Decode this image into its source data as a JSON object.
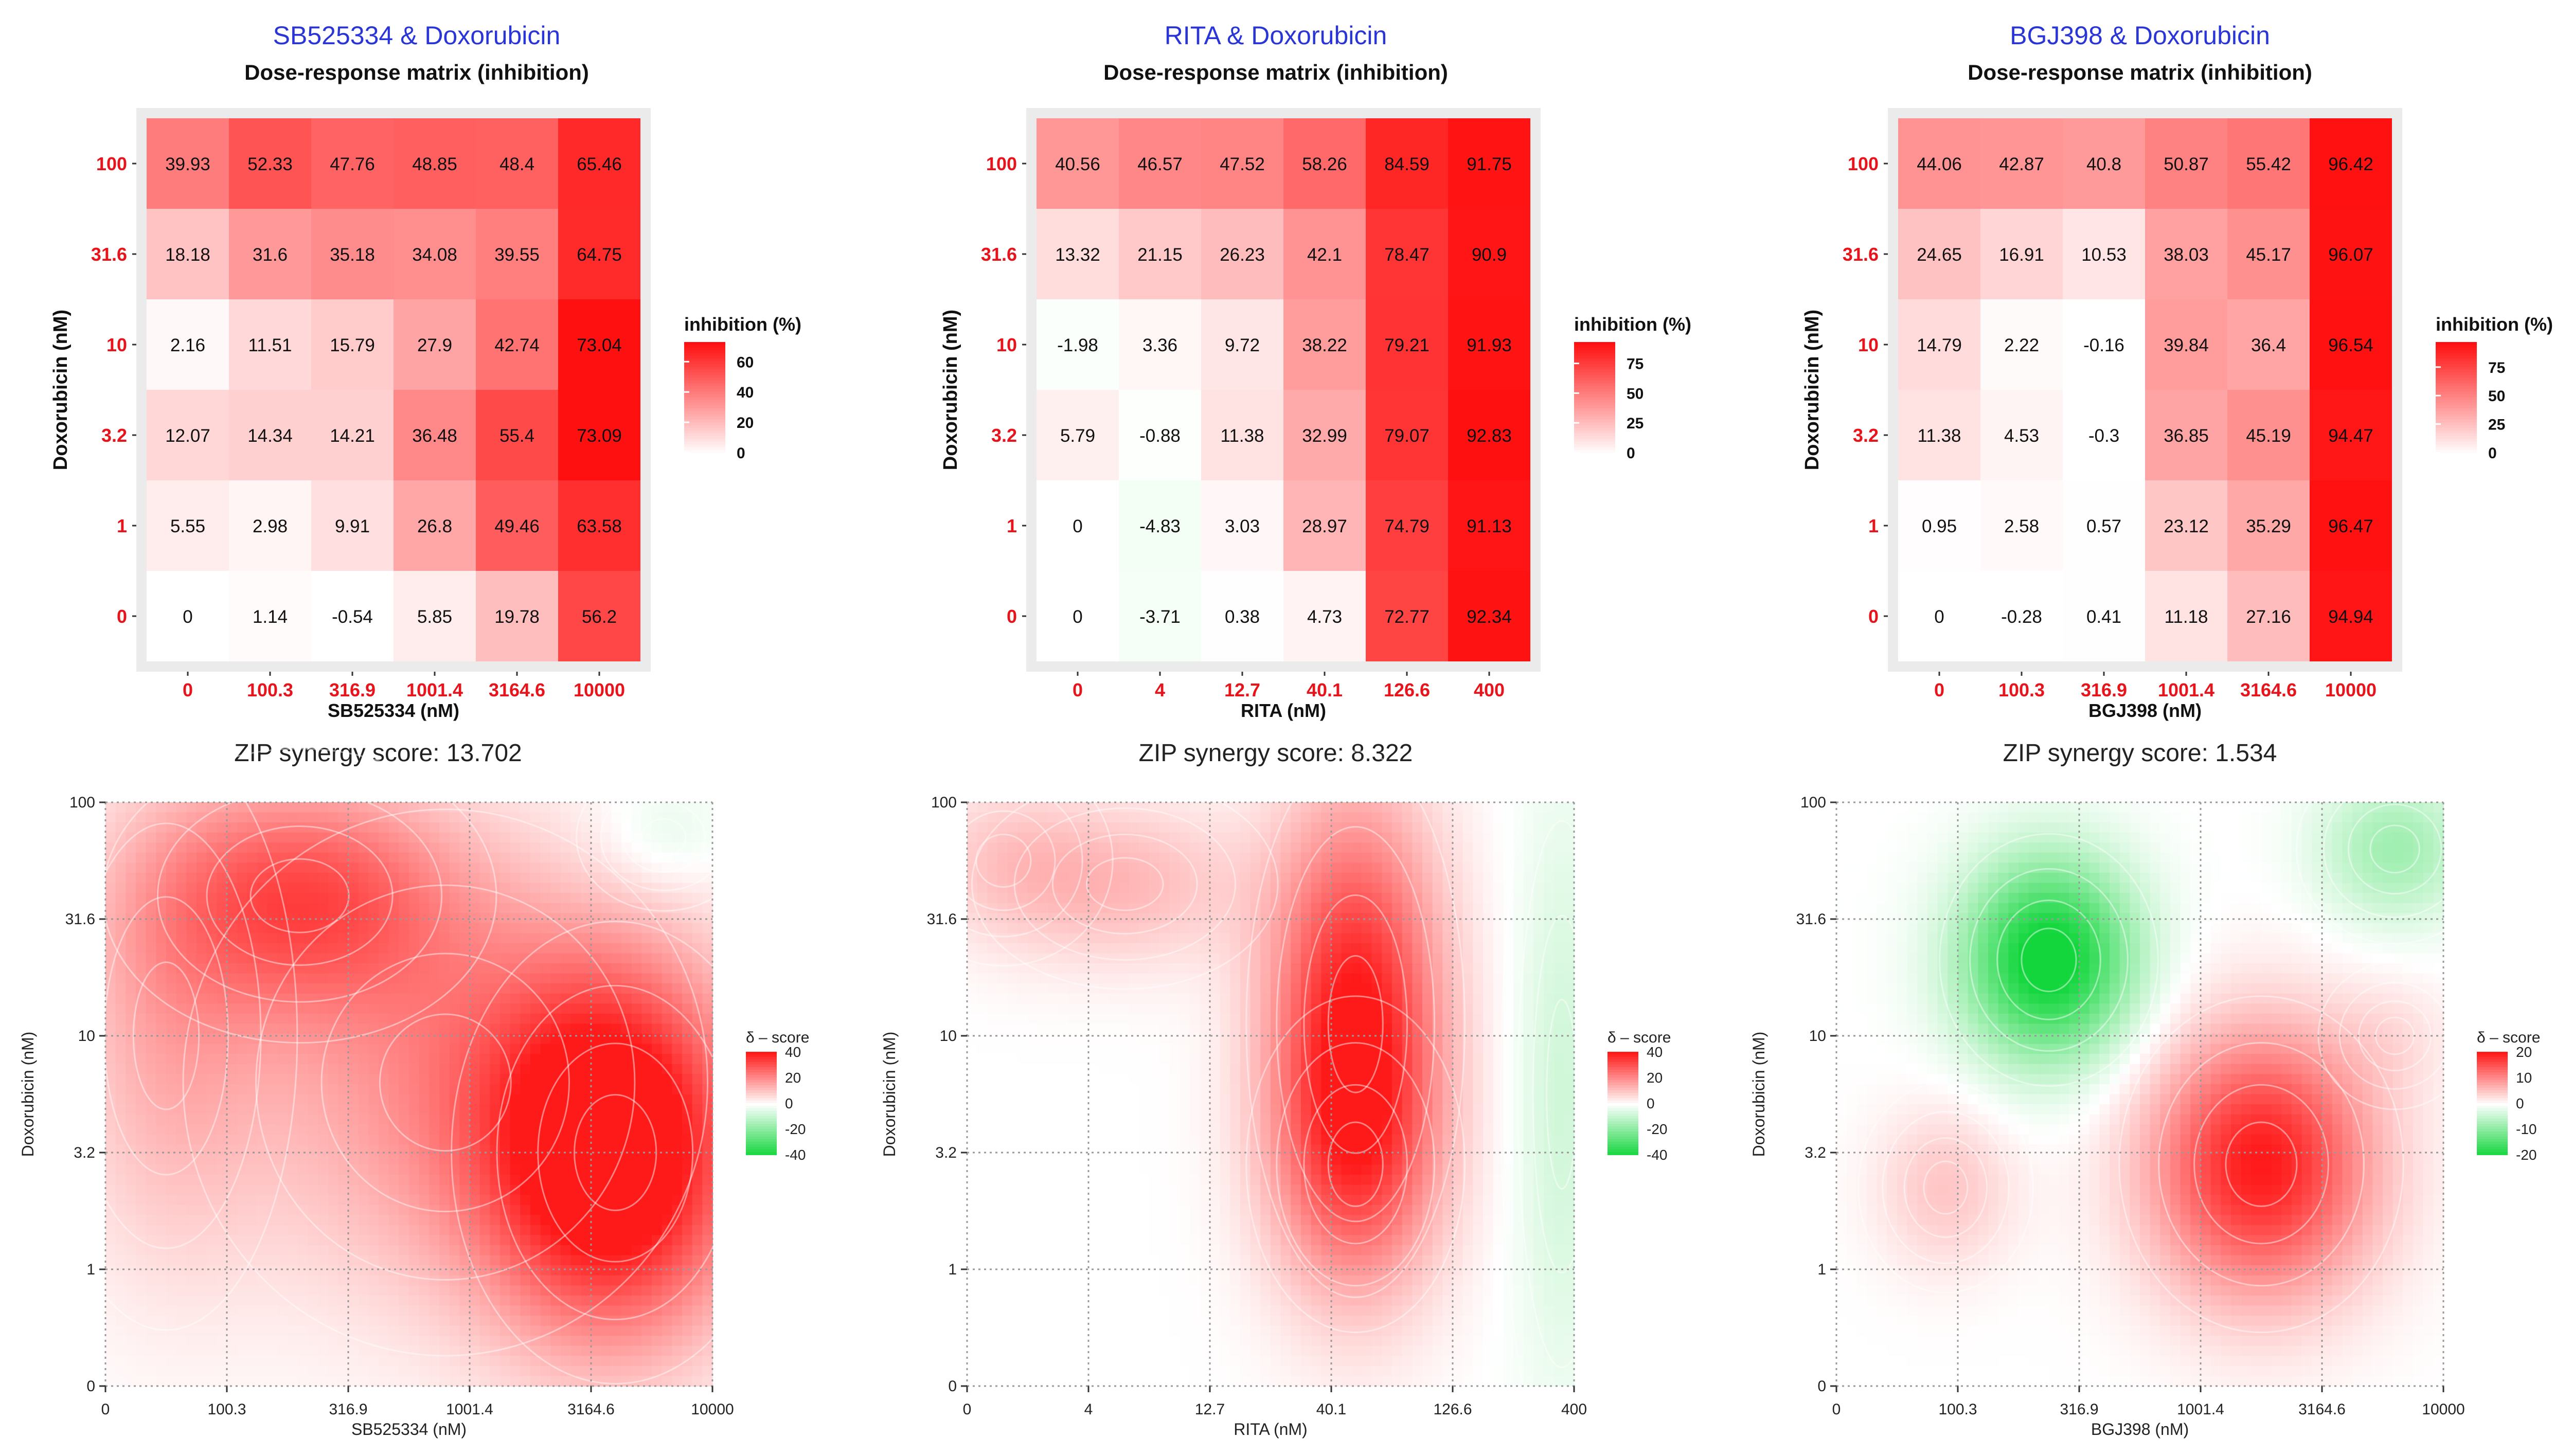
{
  "colors": {
    "panel_title": "#2a35d8",
    "dose_label": "#e8141b",
    "heat_high": "#ff1010",
    "heat_low": "#ffffff",
    "syn_pos": "#ff1a1a",
    "syn_neg": "#12d63c",
    "grid": "#999999",
    "contour": "#ffffff"
  },
  "chart_data": [
    {
      "type": "heatmap",
      "panel_title": "SB525334 & Doxorubicin",
      "title": "Dose-response matrix (inhibition)",
      "xlabel": "SB525334 (nM)",
      "ylabel": "Doxorubicin (nM)",
      "x_ticks": [
        "0",
        "100.3",
        "316.9",
        "1001.4",
        "3164.6",
        "10000"
      ],
      "y_ticks": [
        "0",
        "1",
        "3.2",
        "10",
        "31.6",
        "100"
      ],
      "legend_title": "inhibition (%)",
      "legend_ticks": [
        "0",
        "20",
        "40",
        "60"
      ],
      "color_max": 73,
      "values": [
        [
          0,
          1.14,
          -0.54,
          5.85,
          19.78,
          56.2
        ],
        [
          5.55,
          2.98,
          9.91,
          26.8,
          49.46,
          63.58
        ],
        [
          12.07,
          14.34,
          14.21,
          36.48,
          55.4,
          73.09
        ],
        [
          2.16,
          11.51,
          15.79,
          27.9,
          42.74,
          73.04
        ],
        [
          18.18,
          31.6,
          35.18,
          34.08,
          39.55,
          64.75
        ],
        [
          39.93,
          52.33,
          47.76,
          48.85,
          48.4,
          65.46
        ]
      ]
    },
    {
      "type": "heatmap",
      "panel_title": "RITA & Doxorubicin",
      "title": "Dose-response matrix (inhibition)",
      "xlabel": "RITA (nM)",
      "ylabel": "Doxorubicin (nM)",
      "x_ticks": [
        "0",
        "4",
        "12.7",
        "40.1",
        "126.6",
        "400"
      ],
      "y_ticks": [
        "0",
        "1",
        "3.2",
        "10",
        "31.6",
        "100"
      ],
      "legend_title": "inhibition (%)",
      "legend_ticks": [
        "0",
        "25",
        "50",
        "75"
      ],
      "color_max": 93,
      "values": [
        [
          0,
          -3.71,
          0.38,
          4.73,
          72.77,
          92.34
        ],
        [
          0,
          -4.83,
          3.03,
          28.97,
          74.79,
          91.13
        ],
        [
          5.79,
          -0.88,
          11.38,
          32.99,
          79.07,
          92.83
        ],
        [
          -1.98,
          3.36,
          9.72,
          38.22,
          79.21,
          91.93
        ],
        [
          13.32,
          21.15,
          26.23,
          42.1,
          78.47,
          90.9
        ],
        [
          40.56,
          46.57,
          47.52,
          58.26,
          84.59,
          91.75
        ]
      ]
    },
    {
      "type": "heatmap",
      "panel_title": "BGJ398 & Doxorubicin",
      "title": "Dose-response matrix (inhibition)",
      "xlabel": "BGJ398 (nM)",
      "ylabel": "Doxorubicin (nM)",
      "x_ticks": [
        "0",
        "100.3",
        "316.9",
        "1001.4",
        "3164.6",
        "10000"
      ],
      "y_ticks": [
        "0",
        "1",
        "3.2",
        "10",
        "31.6",
        "100"
      ],
      "legend_title": "inhibition (%)",
      "legend_ticks": [
        "0",
        "25",
        "50",
        "75"
      ],
      "color_max": 97,
      "values": [
        [
          0,
          -0.28,
          0.41,
          11.18,
          27.16,
          94.94
        ],
        [
          0.95,
          2.58,
          0.57,
          23.12,
          35.29,
          96.47
        ],
        [
          11.38,
          4.53,
          -0.3,
          36.85,
          45.19,
          94.47
        ],
        [
          14.79,
          2.22,
          -0.16,
          39.84,
          36.4,
          96.54
        ],
        [
          24.65,
          16.91,
          10.53,
          38.03,
          45.17,
          96.07
        ],
        [
          44.06,
          42.87,
          40.8,
          50.87,
          55.42,
          96.42
        ]
      ]
    },
    {
      "type": "heatmap",
      "title": "ZIP synergy score: 13.702",
      "xlabel": "SB525334 (nM)",
      "ylabel": "Doxorubicin (nM)",
      "x_ticks": [
        "0",
        "100.3",
        "316.9",
        "1001.4",
        "3164.6",
        "10000"
      ],
      "y_ticks": [
        "0",
        "1",
        "3.2",
        "10",
        "31.6",
        "100"
      ],
      "legend_title": "δ – score",
      "legend_ticks": [
        "40",
        "20",
        "0",
        "-20",
        "-40"
      ],
      "legend_range": [
        -40,
        40
      ],
      "grid": true,
      "peaks": [
        {
          "x": 4.2,
          "y": 2.0,
          "sx": 0.75,
          "sy": 1.1,
          "v": 48
        },
        {
          "x": 1.6,
          "y": 4.2,
          "sx": 0.9,
          "sy": 0.7,
          "v": 27
        },
        {
          "x": 0.5,
          "y": 3.0,
          "sx": 0.6,
          "sy": 1.4,
          "v": 12
        },
        {
          "x": 2.8,
          "y": 2.6,
          "sx": 1.2,
          "sy": 1.3,
          "v": 18
        },
        {
          "x": 4.6,
          "y": 4.7,
          "sx": 0.4,
          "sy": 0.35,
          "v": -6
        }
      ]
    },
    {
      "type": "heatmap",
      "title": "ZIP synergy score: 8.322",
      "xlabel": "RITA (nM)",
      "ylabel": "Doxorubicin (nM)",
      "x_ticks": [
        "0",
        "4",
        "12.7",
        "40.1",
        "126.6",
        "400"
      ],
      "y_ticks": [
        "0",
        "1",
        "3.2",
        "10",
        "31.6",
        "100"
      ],
      "legend_title": "δ – score",
      "legend_ticks": [
        "40",
        "20",
        "0",
        "-20",
        "-40"
      ],
      "legend_range": [
        -40,
        40
      ],
      "grid": true,
      "peaks": [
        {
          "x": 3.2,
          "y": 3.1,
          "sx": 0.5,
          "sy": 1.3,
          "v": 40
        },
        {
          "x": 3.2,
          "y": 1.9,
          "sx": 0.5,
          "sy": 0.8,
          "v": 14
        },
        {
          "x": 1.3,
          "y": 4.3,
          "sx": 0.7,
          "sy": 0.5,
          "v": 12
        },
        {
          "x": 0.3,
          "y": 4.5,
          "sx": 0.5,
          "sy": 0.5,
          "v": 8
        },
        {
          "x": 4.9,
          "y": 2.5,
          "sx": 0.28,
          "sy": 1.8,
          "v": -8
        }
      ]
    },
    {
      "type": "heatmap",
      "title": "ZIP synergy score: 1.534",
      "xlabel": "BGJ398 (nM)",
      "ylabel": "Doxorubicin (nM)",
      "x_ticks": [
        "0",
        "100.3",
        "316.9",
        "1001.4",
        "3164.6",
        "10000"
      ],
      "y_ticks": [
        "0",
        "1",
        "3.2",
        "10",
        "31.6",
        "100"
      ],
      "legend_title": "δ – score",
      "legend_ticks": [
        "20",
        "10",
        "0",
        "-10",
        "-20"
      ],
      "legend_range": [
        -20,
        20
      ],
      "grid": true,
      "peaks": [
        {
          "x": 1.75,
          "y": 3.65,
          "sx": 0.5,
          "sy": 0.6,
          "v": -22
        },
        {
          "x": 3.5,
          "y": 1.9,
          "sx": 0.65,
          "sy": 0.8,
          "v": 20
        },
        {
          "x": 0.9,
          "y": 1.7,
          "sx": 0.4,
          "sy": 0.5,
          "v": 5
        },
        {
          "x": 4.6,
          "y": 4.6,
          "sx": 0.45,
          "sy": 0.45,
          "v": -8
        },
        {
          "x": 4.6,
          "y": 3.0,
          "sx": 0.35,
          "sy": 0.35,
          "v": 2
        }
      ]
    }
  ]
}
